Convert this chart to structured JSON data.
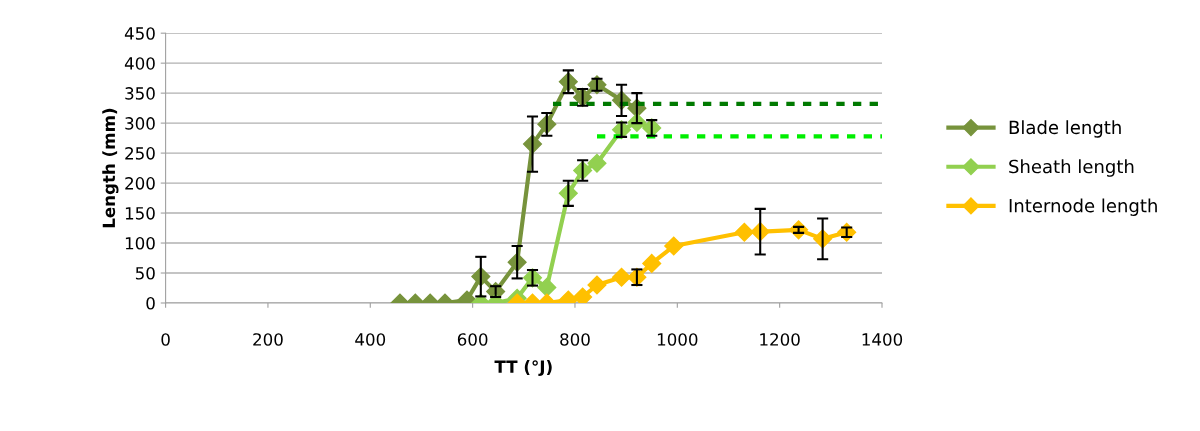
{
  "chart_data": {
    "type": "line",
    "xlabel": "TT (°J)",
    "ylabel": "Length (mm)",
    "xlim": [
      0,
      1400
    ],
    "xticks": [
      0,
      200,
      400,
      600,
      800,
      1000,
      1200,
      1400
    ],
    "ylim": [
      0,
      450
    ],
    "yticks": [
      0,
      50,
      100,
      150,
      200,
      250,
      300,
      350,
      400,
      450
    ],
    "grid": "y",
    "legend": "right",
    "marker": "diamond",
    "series": [
      {
        "name": "Blade length",
        "color": "#77933c",
        "x": [
          458,
          488,
          517,
          546,
          589,
          616,
          645,
          687,
          717,
          745,
          787,
          815,
          843,
          891,
          921
        ],
        "values": [
          0,
          0,
          0,
          0,
          5,
          44,
          19,
          68,
          265,
          298,
          369,
          343,
          364,
          338,
          325
        ],
        "errors": [
          null,
          null,
          null,
          null,
          null,
          33,
          9,
          27,
          46,
          19,
          19,
          14,
          10,
          26,
          25
        ]
      },
      {
        "name": "Sheath length",
        "color": "#92d050",
        "x": [
          616,
          645,
          687,
          717,
          745,
          787,
          815,
          843,
          891,
          921,
          950
        ],
        "values": [
          0,
          0,
          8,
          42,
          26,
          183,
          221,
          233,
          289,
          301,
          292
        ],
        "errors": [
          null,
          null,
          null,
          13,
          null,
          21,
          17,
          null,
          12,
          null,
          13
        ]
      },
      {
        "name": "Internode length",
        "color": "#ffc000",
        "x": [
          687,
          717,
          745,
          787,
          815,
          843,
          891,
          921,
          950,
          993,
          1131,
          1162,
          1237,
          1284,
          1331
        ],
        "values": [
          0,
          0,
          0,
          5,
          10,
          30,
          43,
          43,
          66,
          95,
          118,
          119,
          122,
          107,
          118
        ],
        "errors": [
          null,
          null,
          null,
          null,
          null,
          null,
          null,
          13,
          null,
          null,
          null,
          38,
          5,
          34,
          8
        ]
      },
      {
        "type": "line",
        "color": "#007a00",
        "line_style": "dotted",
        "marker": "none",
        "x": [
          757,
          1400
        ],
        "values": [
          332,
          332
        ]
      },
      {
        "type": "line",
        "color": "#00ee00",
        "line_style": "dotted",
        "marker": "none",
        "x": [
          843,
          1400
        ],
        "values": [
          278,
          278
        ]
      }
    ]
  }
}
